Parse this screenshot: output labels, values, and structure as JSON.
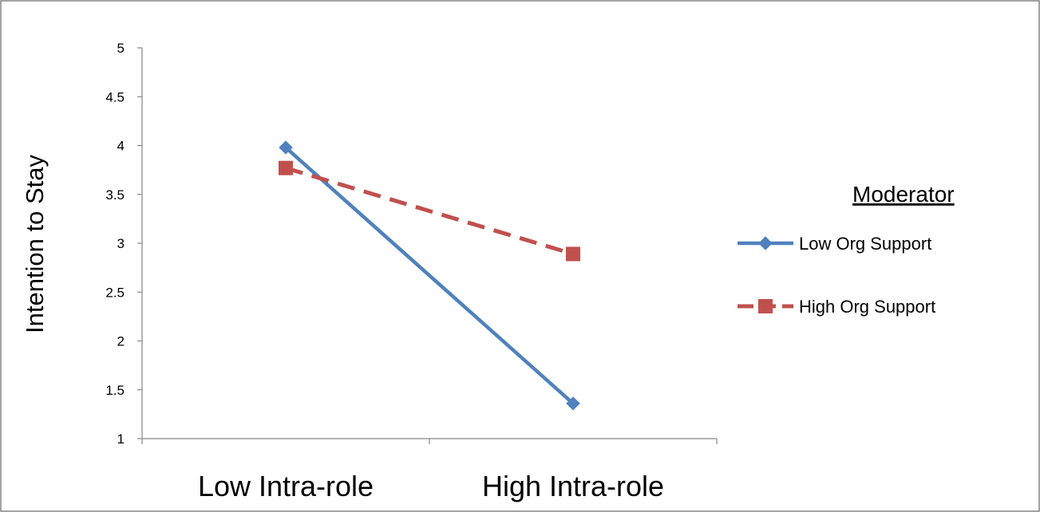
{
  "chart_data": {
    "type": "line",
    "categories": [
      "Low Intra-role",
      "High Intra-role"
    ],
    "ylabel": "Intention to Stay",
    "ylim": [
      1,
      5
    ],
    "yticks": [
      "1",
      "1.5",
      "2",
      "2.5",
      "3",
      "3.5",
      "4",
      "4.5",
      "5"
    ],
    "grid": false,
    "legend": {
      "title": "Moderator",
      "placement": "right"
    },
    "series": [
      {
        "name": "Low Org Support",
        "values": [
          3.98,
          1.36
        ],
        "color": "#4f81bd",
        "marker": "diamond",
        "line_style": "solid"
      },
      {
        "name": "High Org Support",
        "values": [
          3.77,
          2.89
        ],
        "color": "#c0504d",
        "marker": "square",
        "line_style": "dashed"
      }
    ]
  }
}
